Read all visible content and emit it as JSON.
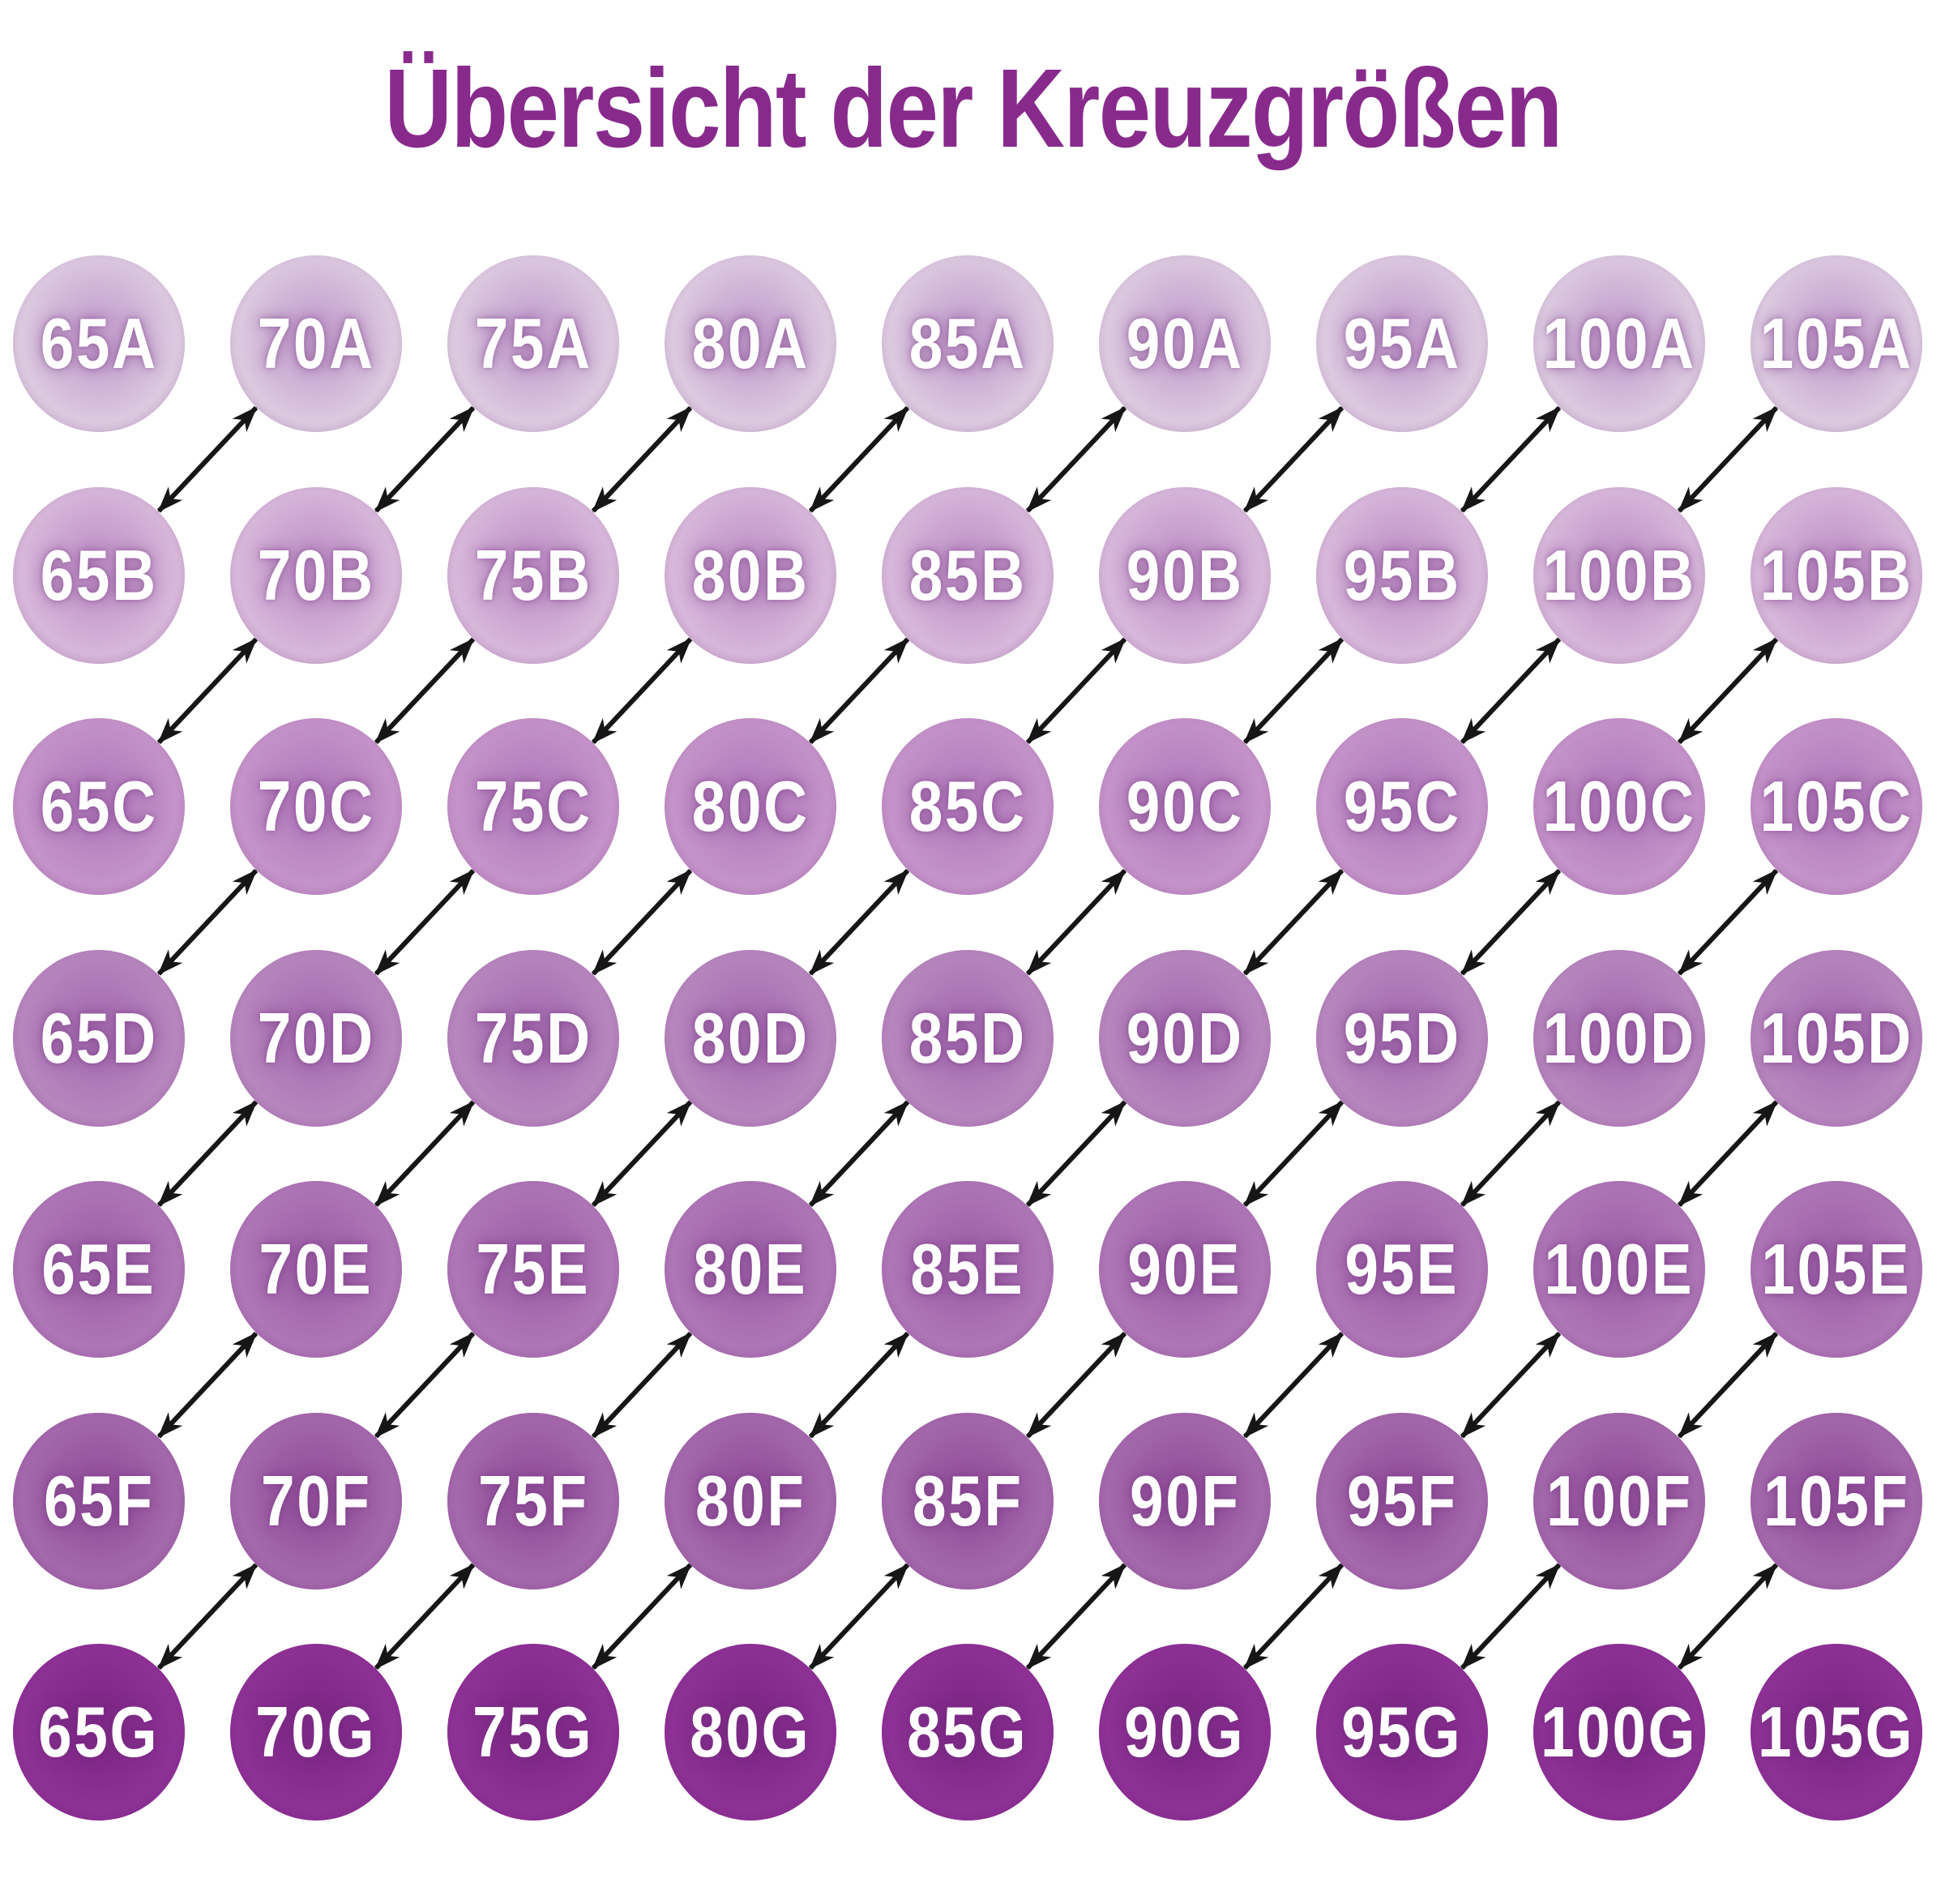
{
  "title": {
    "text": "Übersicht der Kreuzgrößen",
    "color": "#882a8c"
  },
  "background": "#ffffff",
  "grid": {
    "band_sizes": [
      "65",
      "70",
      "75",
      "80",
      "85",
      "90",
      "95",
      "100",
      "105"
    ],
    "cup_sizes": [
      "A",
      "B",
      "C",
      "D",
      "E",
      "F",
      "G"
    ],
    "text_color": "#ffffff",
    "rows": [
      {
        "cup": "A",
        "fill": "#dcc9e0",
        "glow": "#c8a6d1",
        "cells": [
          "65A",
          "70A",
          "75A",
          "80A",
          "85A",
          "90A",
          "95A",
          "100A",
          "105A"
        ]
      },
      {
        "cup": "B",
        "fill": "#d7b7da",
        "glow": "#c499cb",
        "cells": [
          "65B",
          "70B",
          "75B",
          "80B",
          "85B",
          "90B",
          "95B",
          "100B",
          "105B"
        ]
      },
      {
        "cup": "C",
        "fill": "#c493c9",
        "glow": "#b680bf",
        "cells": [
          "65C",
          "70C",
          "75C",
          "80C",
          "85C",
          "90C",
          "95C",
          "100C",
          "105C"
        ]
      },
      {
        "cup": "D",
        "fill": "#b786be",
        "glow": "#a971b3",
        "cells": [
          "65D",
          "70D",
          "75D",
          "80D",
          "85D",
          "90D",
          "95D",
          "100D",
          "105D"
        ]
      },
      {
        "cup": "E",
        "fill": "#ae76b6",
        "glow": "#a164aa",
        "cells": [
          "65E",
          "70E",
          "75E",
          "80E",
          "85E",
          "90E",
          "95E",
          "100E",
          "105E"
        ]
      },
      {
        "cup": "F",
        "fill": "#a468ac",
        "glow": "#96549e",
        "cells": [
          "65F",
          "70F",
          "75F",
          "80F",
          "85F",
          "90F",
          "95F",
          "100F",
          "105F"
        ]
      },
      {
        "cup": "G",
        "fill": "#8e3196",
        "glow": "#812889",
        "cells": [
          "65G",
          "70G",
          "75G",
          "80G",
          "85G",
          "90G",
          "95G",
          "100G",
          "105G"
        ]
      }
    ],
    "arrows": {
      "type": "double-headed",
      "color": "#161616",
      "pairs": [
        [
          "65B",
          "70A"
        ],
        [
          "70B",
          "75A"
        ],
        [
          "75B",
          "80A"
        ],
        [
          "80B",
          "85A"
        ],
        [
          "85B",
          "90A"
        ],
        [
          "90B",
          "95A"
        ],
        [
          "95B",
          "100A"
        ],
        [
          "100B",
          "105A"
        ],
        [
          "65C",
          "70B"
        ],
        [
          "70C",
          "75B"
        ],
        [
          "75C",
          "80B"
        ],
        [
          "80C",
          "85B"
        ],
        [
          "85C",
          "90B"
        ],
        [
          "90C",
          "95B"
        ],
        [
          "95C",
          "100B"
        ],
        [
          "100C",
          "105B"
        ],
        [
          "65D",
          "70C"
        ],
        [
          "70D",
          "75C"
        ],
        [
          "75D",
          "80C"
        ],
        [
          "80D",
          "85C"
        ],
        [
          "85D",
          "90C"
        ],
        [
          "90D",
          "95C"
        ],
        [
          "95D",
          "100C"
        ],
        [
          "100D",
          "105C"
        ],
        [
          "65E",
          "70D"
        ],
        [
          "70E",
          "75D"
        ],
        [
          "75E",
          "80D"
        ],
        [
          "80E",
          "85D"
        ],
        [
          "85E",
          "90D"
        ],
        [
          "90E",
          "95D"
        ],
        [
          "95E",
          "100D"
        ],
        [
          "100E",
          "105D"
        ],
        [
          "65F",
          "70E"
        ],
        [
          "70F",
          "75E"
        ],
        [
          "75F",
          "80E"
        ],
        [
          "80F",
          "85E"
        ],
        [
          "85F",
          "90E"
        ],
        [
          "90F",
          "95E"
        ],
        [
          "95F",
          "100E"
        ],
        [
          "100F",
          "105E"
        ],
        [
          "65G",
          "70F"
        ],
        [
          "70G",
          "75F"
        ],
        [
          "75G",
          "80F"
        ],
        [
          "80G",
          "85F"
        ],
        [
          "85G",
          "90F"
        ],
        [
          "90G",
          "95F"
        ],
        [
          "95G",
          "100F"
        ],
        [
          "100G",
          "105F"
        ]
      ]
    }
  }
}
